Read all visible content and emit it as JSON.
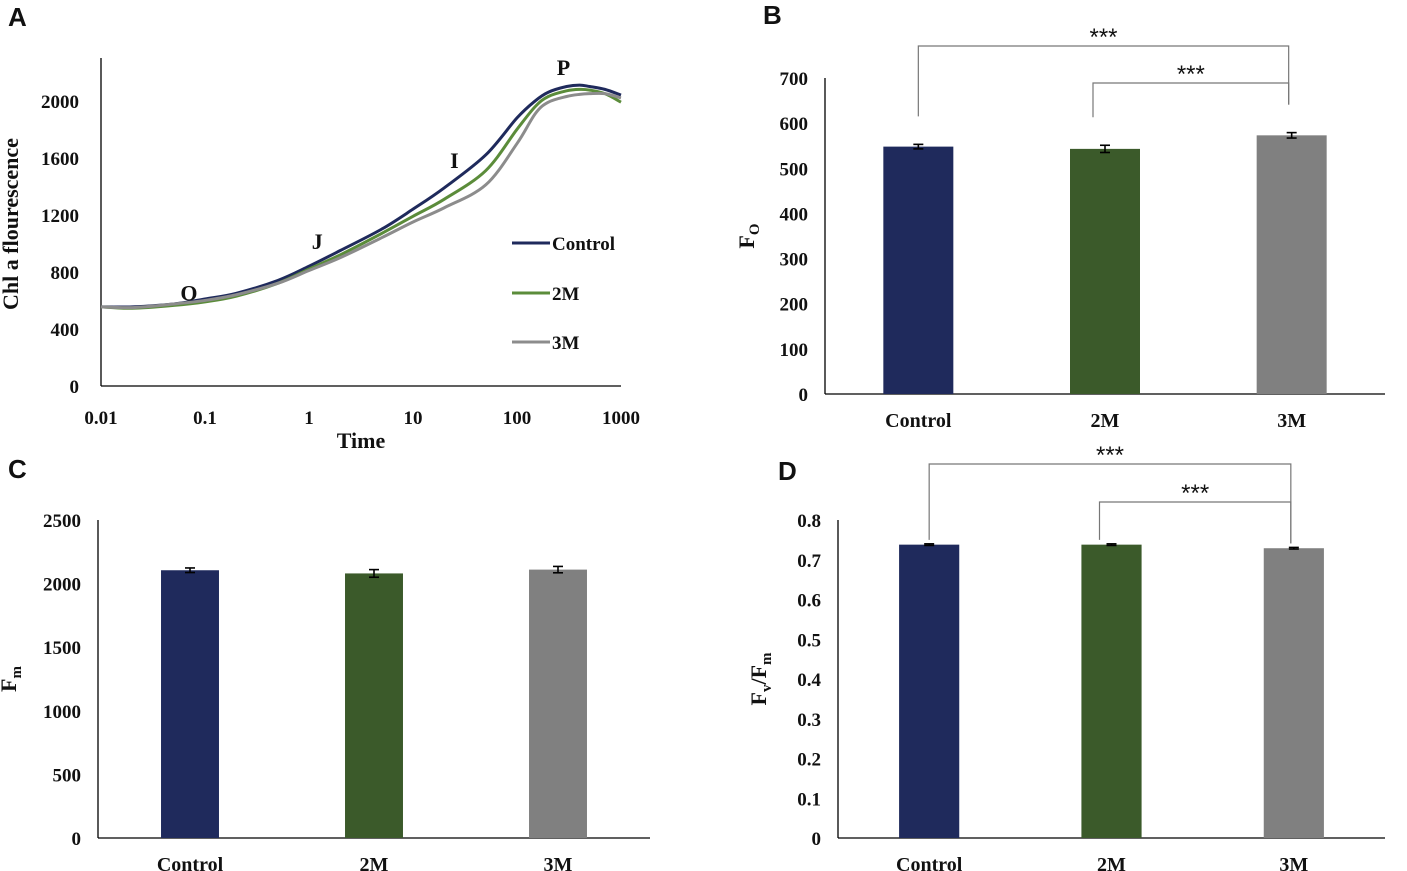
{
  "colors": {
    "Control": "#1f2a5c",
    "2M": "#3b5a2a",
    "3M": "#808080",
    "line_2M": "#5b8c3a",
    "line_3M": "#8c8c8c"
  },
  "chart_data": [
    {
      "id": "A",
      "type": "line",
      "panel_label": "A",
      "xlabel": "Time",
      "ylabel": "Chl a flourescence",
      "xscale": "log",
      "xlim": [
        0.01,
        1000
      ],
      "ylim": [
        0,
        2300
      ],
      "xticks": [
        0.01,
        0.1,
        1,
        10,
        100,
        1000
      ],
      "xtick_labels": [
        "0.01",
        "0.1",
        "1",
        "10",
        "100",
        "1000"
      ],
      "yticks": [
        0,
        400,
        800,
        1200,
        1600,
        2000
      ],
      "ytick_labels": [
        "0",
        "400",
        "800",
        "1200",
        "1600",
        "2000"
      ],
      "annotations": [
        {
          "text": "O",
          "x": 0.07,
          "y": 600
        },
        {
          "text": "J",
          "x": 1.2,
          "y": 960
        },
        {
          "text": "I",
          "x": 25,
          "y": 1530
        },
        {
          "text": "P",
          "x": 280,
          "y": 2180
        }
      ],
      "legend_position": "right",
      "series": [
        {
          "name": "Control",
          "x": [
            0.01,
            0.02,
            0.05,
            0.1,
            0.2,
            0.5,
            1,
            2,
            5,
            10,
            20,
            50,
            100,
            150,
            200,
            300,
            400,
            500,
            700,
            1000
          ],
          "values": [
            555,
            555,
            575,
            610,
            650,
            740,
            840,
            950,
            1100,
            1240,
            1390,
            1620,
            1880,
            2000,
            2060,
            2100,
            2110,
            2100,
            2080,
            2040
          ]
        },
        {
          "name": "2M",
          "x": [
            0.01,
            0.02,
            0.05,
            0.1,
            0.2,
            0.5,
            1,
            2,
            5,
            10,
            20,
            50,
            100,
            150,
            200,
            300,
            400,
            500,
            700,
            1000
          ],
          "values": [
            555,
            545,
            565,
            590,
            630,
            720,
            820,
            920,
            1070,
            1190,
            1310,
            1510,
            1800,
            1960,
            2030,
            2070,
            2080,
            2075,
            2050,
            1990
          ]
        },
        {
          "name": "3M",
          "x": [
            0.01,
            0.02,
            0.05,
            0.1,
            0.2,
            0.5,
            1,
            2,
            5,
            10,
            20,
            50,
            100,
            150,
            200,
            300,
            400,
            500,
            700,
            1000
          ],
          "values": [
            555,
            550,
            575,
            600,
            640,
            720,
            810,
            900,
            1040,
            1150,
            1250,
            1410,
            1700,
            1910,
            1990,
            2030,
            2045,
            2050,
            2050,
            2020
          ]
        }
      ]
    },
    {
      "id": "B",
      "type": "bar",
      "panel_label": "B",
      "ylabel": "F",
      "ylabel_sub": "O",
      "categories": [
        "Control",
        "2M",
        "3M"
      ],
      "values": [
        548,
        543,
        573
      ],
      "errors": [
        5,
        8,
        6
      ],
      "ylim": [
        0,
        700
      ],
      "yticks": [
        0,
        100,
        200,
        300,
        400,
        500,
        600,
        700
      ],
      "significance": [
        {
          "from": "Control",
          "to": "3M",
          "label": "***"
        },
        {
          "from": "2M",
          "to": "3M",
          "label": "***"
        }
      ]
    },
    {
      "id": "C",
      "type": "bar",
      "panel_label": "C",
      "ylabel": "F",
      "ylabel_sub": "m",
      "categories": [
        "Control",
        "2M",
        "3M"
      ],
      "values": [
        2105,
        2080,
        2110
      ],
      "errors": [
        18,
        30,
        25
      ],
      "ylim": [
        0,
        2500
      ],
      "yticks": [
        0,
        500,
        1000,
        1500,
        2000,
        2500
      ],
      "significance": []
    },
    {
      "id": "D",
      "type": "bar",
      "panel_label": "D",
      "ylabel": "F",
      "ylabel_sub": "v",
      "ylabel2": "/F",
      "ylabel2_sub": "m",
      "categories": [
        "Control",
        "2M",
        "3M"
      ],
      "values": [
        0.738,
        0.738,
        0.729
      ],
      "errors": [
        0.002,
        0.002,
        0.002
      ],
      "ylim": [
        0,
        0.8
      ],
      "yticks": [
        0,
        0.1,
        0.2,
        0.3,
        0.4,
        0.5,
        0.6,
        0.7,
        0.8
      ],
      "ytick_labels": [
        "0",
        "0.1",
        "0.2",
        "0.3",
        "0.4",
        "0.5",
        "0.6",
        "0.7",
        "0.8"
      ],
      "significance": [
        {
          "from": "Control",
          "to": "3M",
          "label": "***"
        },
        {
          "from": "2M",
          "to": "3M",
          "label": "***"
        }
      ]
    }
  ]
}
